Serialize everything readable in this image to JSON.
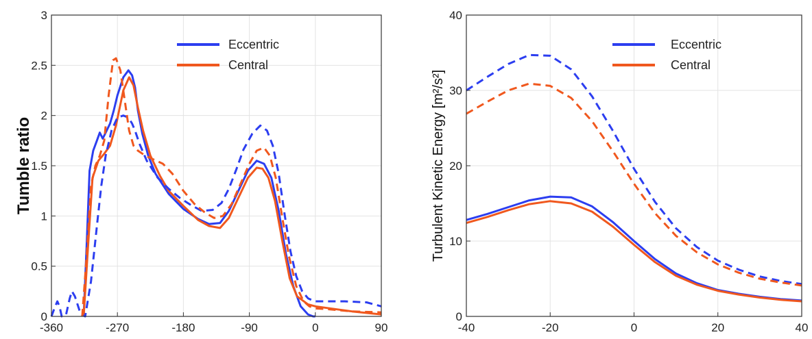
{
  "colors": {
    "eccentric": "#2c3ef0",
    "central": "#f0581e",
    "grid": "#e3e3e3",
    "axis": "#333333"
  },
  "chart_data": [
    {
      "type": "line",
      "xlabel": "",
      "ylabel": "Tumble ratio",
      "xlim": [
        -360,
        90
      ],
      "ylim": [
        0,
        3
      ],
      "xticks": [
        -360,
        -270,
        -180,
        -90,
        0,
        90
      ],
      "yticks": [
        0,
        0.5,
        1,
        1.5,
        2,
        2.5,
        3
      ],
      "xtick_labels": [
        "-360",
        "-270",
        "-180",
        "-90",
        "0",
        "90"
      ],
      "ytick_labels": [
        "0",
        "0.5",
        "1",
        "1.5",
        "2",
        "2.5",
        "3"
      ],
      "grid": true,
      "legend": "top-right",
      "legend_entries": [
        "Eccentric",
        "Central"
      ],
      "series": [
        {
          "name": "Eccentric",
          "style": "solid",
          "x": [
            -316,
            -312,
            -308,
            -303,
            -298,
            -294,
            -290,
            -286,
            -280,
            -275,
            -270,
            -262,
            -255,
            -250,
            -246,
            -242,
            -236,
            -228,
            -218,
            -200,
            -180,
            -160,
            -145,
            -130,
            -118,
            -105,
            -92,
            -80,
            -70,
            -60,
            -50,
            -40,
            -30,
            -20,
            -10,
            -3,
            0
          ],
          "y": [
            0,
            0.7,
            1.45,
            1.65,
            1.75,
            1.83,
            1.77,
            1.83,
            1.92,
            2.05,
            2.2,
            2.38,
            2.45,
            2.4,
            2.28,
            2.05,
            1.82,
            1.6,
            1.42,
            1.22,
            1.07,
            0.97,
            0.92,
            0.93,
            1.05,
            1.25,
            1.45,
            1.55,
            1.52,
            1.38,
            1.05,
            0.62,
            0.3,
            0.1,
            0.02,
            0,
            0
          ]
        },
        {
          "name": "Central",
          "style": "solid",
          "x": [
            -316,
            -310,
            -304,
            -296,
            -288,
            -280,
            -272,
            -262,
            -254,
            -248,
            -242,
            -235,
            -225,
            -212,
            -200,
            -180,
            -160,
            -145,
            -130,
            -118,
            -105,
            -92,
            -80,
            -72,
            -64,
            -55,
            -45,
            -35,
            -25,
            -10,
            0,
            20,
            50,
            90
          ],
          "y": [
            0,
            0.7,
            1.38,
            1.55,
            1.62,
            1.7,
            1.9,
            2.25,
            2.38,
            2.3,
            2.08,
            1.85,
            1.6,
            1.4,
            1.25,
            1.1,
            0.96,
            0.9,
            0.88,
            0.98,
            1.18,
            1.38,
            1.48,
            1.47,
            1.38,
            1.15,
            0.75,
            0.38,
            0.2,
            0.12,
            0.1,
            0.08,
            0.05,
            0.02
          ]
        },
        {
          "name": "Eccentric",
          "style": "dashed",
          "x": [
            -360,
            -356,
            -352,
            -349,
            -346,
            -340,
            -335,
            -332,
            -328,
            -320,
            -314,
            -306,
            -298,
            -292,
            -286,
            -278,
            -270,
            -262,
            -255,
            -250,
            -246,
            -240,
            -230,
            -215,
            -200,
            -185,
            -170,
            -155,
            -140,
            -128,
            -118,
            -108,
            -98,
            -86,
            -75,
            -66,
            -58,
            -50,
            -42,
            -34,
            -26,
            -18,
            -10,
            -4,
            0,
            10,
            40,
            70,
            90
          ],
          "y": [
            0,
            0.08,
            0.15,
            0.1,
            0.0,
            0.02,
            0.18,
            0.25,
            0.2,
            0.02,
            0,
            0.35,
            0.9,
            1.3,
            1.6,
            1.85,
            1.98,
            2.0,
            1.98,
            1.92,
            1.85,
            1.72,
            1.55,
            1.38,
            1.27,
            1.18,
            1.11,
            1.05,
            1.06,
            1.13,
            1.27,
            1.46,
            1.66,
            1.82,
            1.9,
            1.85,
            1.7,
            1.42,
            1.02,
            0.65,
            0.4,
            0.25,
            0.18,
            0.16,
            0.15,
            0.15,
            0.15,
            0.14,
            0.1
          ]
        },
        {
          "name": "Central",
          "style": "dashed",
          "x": [
            -318,
            -312,
            -306,
            -300,
            -294,
            -288,
            -282,
            -276,
            -272,
            -266,
            -260,
            -254,
            -248,
            -242,
            -232,
            -220,
            -208,
            -195,
            -180,
            -165,
            -150,
            -138,
            -126,
            -114,
            -102,
            -90,
            -80,
            -70,
            -62,
            -54,
            -45,
            -36,
            -26,
            -16,
            -8,
            0,
            20,
            50,
            90
          ],
          "y": [
            0,
            0.6,
            1.3,
            1.5,
            1.6,
            1.75,
            2.2,
            2.55,
            2.57,
            2.45,
            2.15,
            1.85,
            1.7,
            1.65,
            1.6,
            1.56,
            1.52,
            1.42,
            1.25,
            1.12,
            1.03,
            0.98,
            1.0,
            1.12,
            1.32,
            1.52,
            1.65,
            1.68,
            1.6,
            1.38,
            0.98,
            0.6,
            0.3,
            0.15,
            0.1,
            0.08,
            0.07,
            0.05,
            0.04
          ]
        }
      ]
    },
    {
      "type": "line",
      "xlabel": "",
      "ylabel": "Turbulent Kinetic Energy [m²/s²]",
      "xlim": [
        -40,
        40
      ],
      "ylim": [
        0,
        40
      ],
      "xticks": [
        -40,
        -20,
        0,
        20,
        40
      ],
      "yticks": [
        0,
        10,
        20,
        30,
        40
      ],
      "xtick_labels": [
        "-40",
        "-20",
        "0",
        "20",
        "40"
      ],
      "ytick_labels": [
        "0",
        "10",
        "20",
        "30",
        "40"
      ],
      "grid": true,
      "legend": "top-right",
      "legend_entries": [
        "Eccentric",
        "Central"
      ],
      "series": [
        {
          "name": "Eccentric",
          "style": "solid",
          "x": [
            -40,
            -35,
            -30,
            -25,
            -20,
            -15,
            -10,
            -5,
            0,
            5,
            10,
            15,
            20,
            25,
            30,
            35,
            40
          ],
          "y": [
            12.8,
            13.6,
            14.5,
            15.4,
            15.9,
            15.8,
            14.6,
            12.5,
            10.0,
            7.6,
            5.7,
            4.4,
            3.5,
            3.0,
            2.6,
            2.3,
            2.1
          ]
        },
        {
          "name": "Central",
          "style": "solid",
          "x": [
            -40,
            -35,
            -30,
            -25,
            -20,
            -15,
            -10,
            -5,
            0,
            5,
            10,
            15,
            20,
            25,
            30,
            35,
            40
          ],
          "y": [
            12.4,
            13.2,
            14.1,
            14.9,
            15.3,
            15.0,
            13.9,
            11.9,
            9.5,
            7.2,
            5.4,
            4.2,
            3.4,
            2.9,
            2.5,
            2.2,
            2.0
          ]
        },
        {
          "name": "Eccentric",
          "style": "dashed",
          "x": [
            -40,
            -35,
            -30,
            -25,
            -20,
            -15,
            -10,
            -5,
            0,
            5,
            10,
            15,
            20,
            25,
            30,
            35,
            40
          ],
          "y": [
            30.0,
            31.8,
            33.5,
            34.7,
            34.6,
            32.8,
            29.2,
            24.6,
            19.6,
            15.2,
            11.7,
            9.2,
            7.4,
            6.2,
            5.3,
            4.7,
            4.3
          ]
        },
        {
          "name": "Central",
          "style": "dashed",
          "x": [
            -40,
            -35,
            -30,
            -25,
            -20,
            -15,
            -10,
            -5,
            0,
            5,
            10,
            15,
            20,
            25,
            30,
            35,
            40
          ],
          "y": [
            26.9,
            28.5,
            30.0,
            30.9,
            30.6,
            29.0,
            25.9,
            21.9,
            17.6,
            13.7,
            10.7,
            8.5,
            6.9,
            5.8,
            5.0,
            4.5,
            4.1
          ]
        }
      ]
    }
  ]
}
